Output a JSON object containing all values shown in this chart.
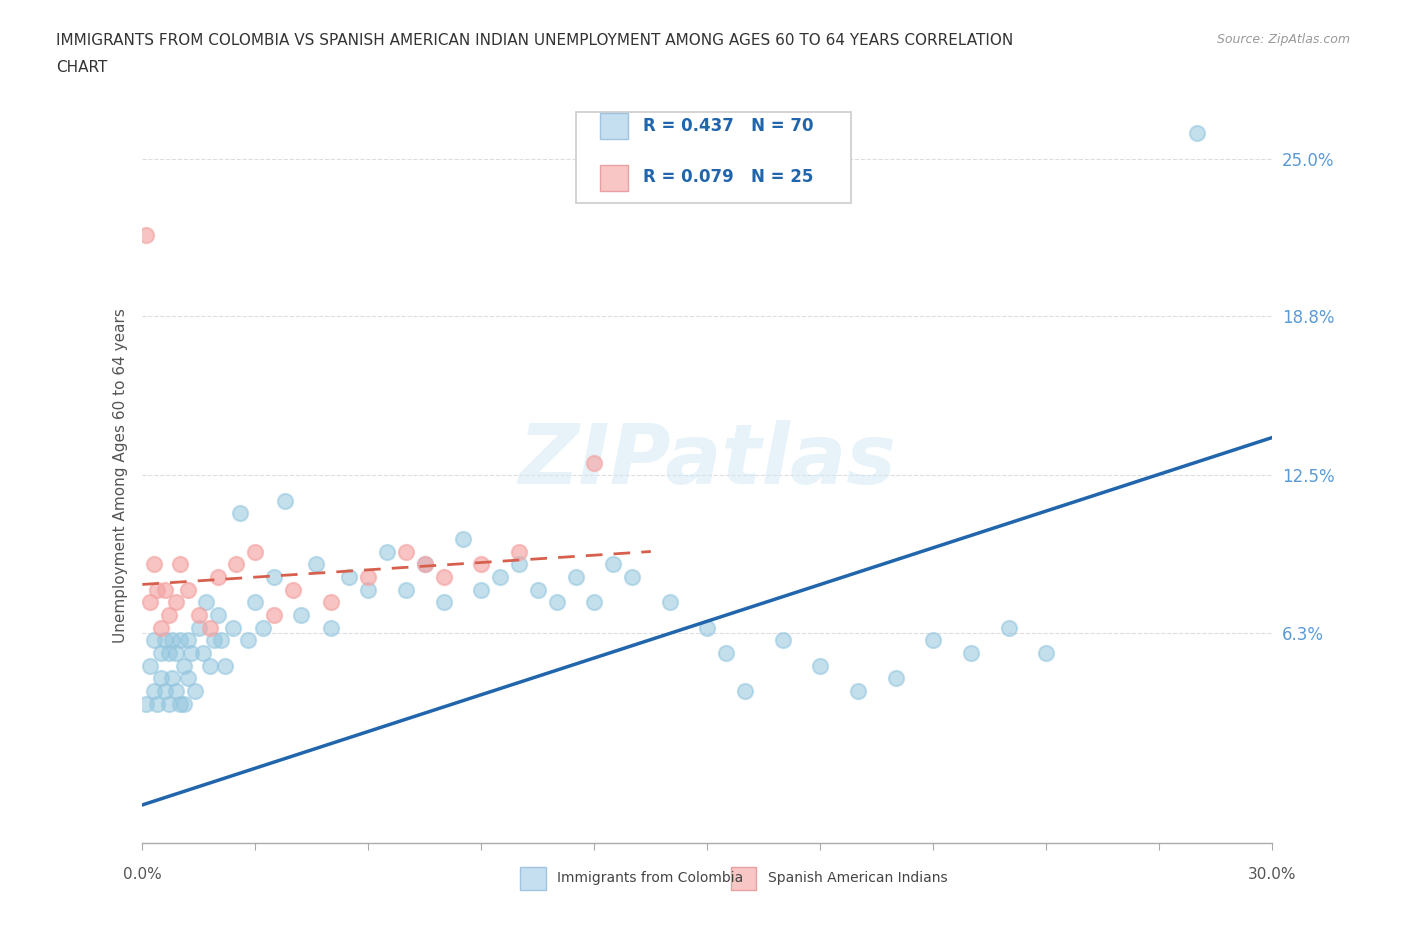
{
  "title_line1": "IMMIGRANTS FROM COLOMBIA VS SPANISH AMERICAN INDIAN UNEMPLOYMENT AMONG AGES 60 TO 64 YEARS CORRELATION",
  "title_line2": "CHART",
  "source": "Source: ZipAtlas.com",
  "ylabel": "Unemployment Among Ages 60 to 64 years",
  "xlim": [
    0.0,
    0.3
  ],
  "ylim": [
    -0.02,
    0.27
  ],
  "colombia_color": "#92C5DE",
  "colombia_line_color": "#2166AC",
  "indian_color": "#F4A4A4",
  "indian_line_color": "#D6604D",
  "R_colombia": 0.437,
  "N_colombia": 70,
  "R_indian": 0.079,
  "N_indian": 25,
  "watermark": "ZIPatlas",
  "background_color": "#ffffff",
  "grid_color": "#dddddd",
  "ytick_vals": [
    0.063,
    0.125,
    0.188,
    0.25
  ],
  "ytick_labels": [
    "6.3%",
    "12.5%",
    "18.8%",
    "25.0%"
  ],
  "colombia_x": [
    0.001,
    0.002,
    0.003,
    0.003,
    0.004,
    0.005,
    0.005,
    0.006,
    0.006,
    0.007,
    0.007,
    0.008,
    0.008,
    0.009,
    0.009,
    0.01,
    0.01,
    0.011,
    0.011,
    0.012,
    0.012,
    0.013,
    0.014,
    0.015,
    0.016,
    0.017,
    0.018,
    0.019,
    0.02,
    0.021,
    0.022,
    0.024,
    0.026,
    0.028,
    0.03,
    0.032,
    0.035,
    0.038,
    0.042,
    0.046,
    0.05,
    0.055,
    0.06,
    0.065,
    0.07,
    0.075,
    0.08,
    0.085,
    0.09,
    0.095,
    0.1,
    0.105,
    0.11,
    0.115,
    0.12,
    0.125,
    0.13,
    0.14,
    0.15,
    0.155,
    0.16,
    0.17,
    0.18,
    0.19,
    0.2,
    0.21,
    0.22,
    0.23,
    0.24,
    0.28
  ],
  "colombia_y": [
    0.035,
    0.05,
    0.04,
    0.06,
    0.035,
    0.055,
    0.045,
    0.04,
    0.06,
    0.035,
    0.055,
    0.045,
    0.06,
    0.04,
    0.055,
    0.035,
    0.06,
    0.05,
    0.035,
    0.06,
    0.045,
    0.055,
    0.04,
    0.065,
    0.055,
    0.075,
    0.05,
    0.06,
    0.07,
    0.06,
    0.05,
    0.065,
    0.11,
    0.06,
    0.075,
    0.065,
    0.085,
    0.115,
    0.07,
    0.09,
    0.065,
    0.085,
    0.08,
    0.095,
    0.08,
    0.09,
    0.075,
    0.1,
    0.08,
    0.085,
    0.09,
    0.08,
    0.075,
    0.085,
    0.075,
    0.09,
    0.085,
    0.075,
    0.065,
    0.055,
    0.04,
    0.06,
    0.05,
    0.04,
    0.045,
    0.06,
    0.055,
    0.065,
    0.055,
    0.26
  ],
  "indian_x": [
    0.001,
    0.002,
    0.003,
    0.004,
    0.005,
    0.006,
    0.007,
    0.009,
    0.01,
    0.012,
    0.015,
    0.018,
    0.02,
    0.025,
    0.03,
    0.035,
    0.04,
    0.05,
    0.06,
    0.07,
    0.075,
    0.08,
    0.09,
    0.1,
    0.12
  ],
  "indian_y": [
    0.22,
    0.075,
    0.09,
    0.08,
    0.065,
    0.08,
    0.07,
    0.075,
    0.09,
    0.08,
    0.07,
    0.065,
    0.085,
    0.09,
    0.095,
    0.07,
    0.08,
    0.075,
    0.085,
    0.095,
    0.09,
    0.085,
    0.09,
    0.095,
    0.13
  ],
  "colombia_trend_x": [
    0.0,
    0.3
  ],
  "colombia_trend_y": [
    -0.005,
    0.14
  ],
  "indian_trend_x": [
    0.0,
    0.135
  ],
  "indian_trend_y": [
    0.082,
    0.095
  ]
}
